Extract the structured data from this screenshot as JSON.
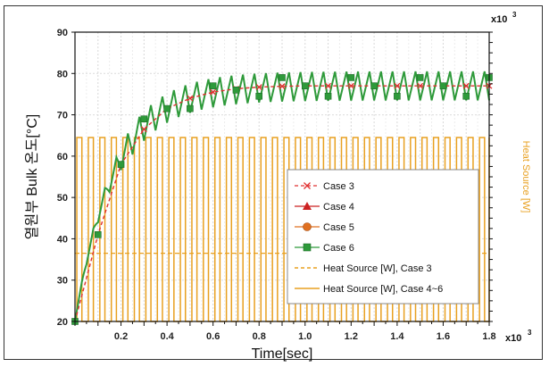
{
  "chart_data": {
    "type": "line",
    "xlabel": "Time[sec]",
    "ylabel": "열원부 Bulk 온도[°C]",
    "y2label": "Heat Source [W]",
    "x_multiplier": "x10",
    "x_multiplier_exp": "3",
    "y2_multiplier": "x10",
    "y2_multiplier_exp": "3",
    "xlim": [
      0,
      1.8
    ],
    "ylim": [
      20,
      90
    ],
    "xticks": [
      "0.2",
      "0.4",
      "0.6",
      "0.8",
      "1.0",
      "1.2",
      "1.4",
      "1.6",
      "1.8"
    ],
    "yticks": [
      "20",
      "30",
      "40",
      "50",
      "60",
      "70",
      "80",
      "90"
    ],
    "grid": true,
    "legend_position": "center-right",
    "series": [
      {
        "name": "Case 3",
        "color": "#e03030",
        "marker": "x",
        "style": "dashed",
        "x": [
          0.0,
          0.1,
          0.2,
          0.3,
          0.4,
          0.5,
          0.6,
          0.7,
          0.8,
          0.9,
          1.0,
          1.1,
          1.2,
          1.3,
          1.4,
          1.5,
          1.6,
          1.7,
          1.8
        ],
        "y": [
          20,
          41,
          58,
          66.5,
          71.5,
          74,
          75.5,
          76.3,
          76.7,
          76.9,
          77,
          77,
          77,
          77,
          77,
          77,
          77,
          77,
          77
        ]
      },
      {
        "name": "Case 4",
        "color": "#cc2222",
        "marker": "triangle",
        "style": "solid",
        "x": [
          0.0,
          0.1,
          0.2,
          0.3,
          0.4,
          0.5,
          0.6,
          0.7,
          0.8,
          0.9,
          1.0,
          1.1,
          1.2,
          1.3,
          1.4,
          1.5,
          1.6,
          1.7,
          1.8
        ],
        "y": [
          20,
          41,
          58,
          69,
          71.5,
          71.5,
          77,
          76,
          74.5,
          79,
          77,
          74.5,
          79,
          77,
          74.5,
          79,
          77,
          74.5,
          79
        ]
      },
      {
        "name": "Case 5",
        "color": "#e07020",
        "marker": "circle",
        "style": "solid",
        "x": [
          0.0,
          0.1,
          0.2,
          0.3,
          0.4,
          0.5,
          0.6,
          0.7,
          0.8,
          0.9,
          1.0,
          1.1,
          1.2,
          1.3,
          1.4,
          1.5,
          1.6,
          1.7,
          1.8
        ],
        "y": [
          20,
          41,
          58,
          69,
          71.5,
          71.5,
          77,
          76,
          74.5,
          79,
          77,
          74.5,
          79,
          77,
          74.5,
          79,
          77,
          74.5,
          79
        ]
      },
      {
        "name": "Case 6",
        "color": "#2e9a3a",
        "marker": "square",
        "style": "solid",
        "x": [
          0.0,
          0.1,
          0.2,
          0.3,
          0.4,
          0.5,
          0.6,
          0.7,
          0.8,
          0.9,
          1.0,
          1.1,
          1.2,
          1.3,
          1.4,
          1.5,
          1.6,
          1.7,
          1.8
        ],
        "y": [
          20,
          41,
          58,
          69,
          71.5,
          71.5,
          77,
          76,
          74.5,
          79,
          77,
          74.5,
          79,
          77,
          74.5,
          79,
          77,
          74.5,
          79
        ],
        "oscillation_amplitude": 3.5,
        "oscillation_period": 0.05
      },
      {
        "name": "Heat Source [W], Case 3",
        "color": "#e8a020",
        "style": "dashed",
        "axis": "right",
        "constant_level": 36.5
      },
      {
        "name": "Heat Source [W], Case 4~6",
        "color": "#e8a020",
        "style": "solid",
        "axis": "right",
        "pulse": {
          "high": 64.5,
          "low": 20,
          "period": 0.05,
          "duty": 0.6
        }
      }
    ]
  }
}
